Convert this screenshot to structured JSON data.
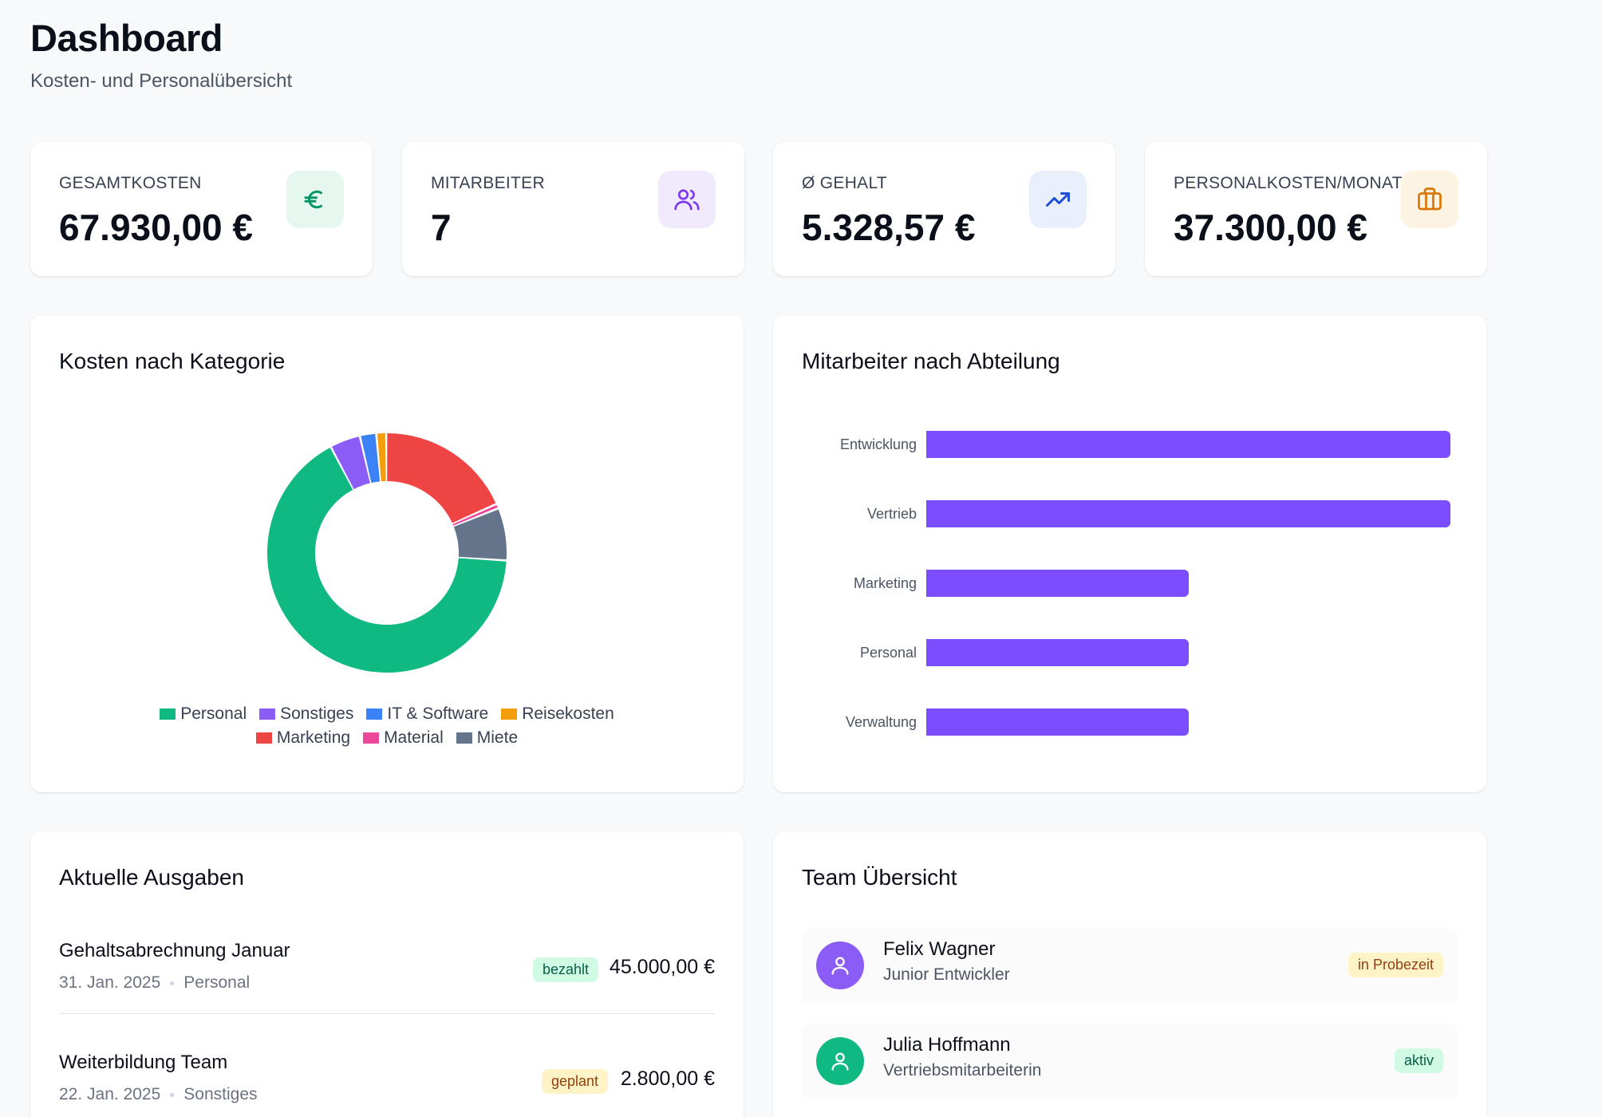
{
  "header": {
    "title": "Dashboard",
    "subtitle": "Kosten- und Personalübersicht"
  },
  "stats": [
    {
      "label": "GESAMTKOSTEN",
      "value": "67.930,00 €",
      "icon": "euro-icon",
      "icon_color": "#059669",
      "icon_bg": "#e6f7ef"
    },
    {
      "label": "MITARBEITER",
      "value": "7",
      "icon": "users-icon",
      "icon_color": "#7c3aed",
      "icon_bg": "#f1eafd"
    },
    {
      "label": "Ø GEHALT",
      "value": "5.328,57 €",
      "icon": "trending-up-icon",
      "icon_color": "#1d4ed8",
      "icon_bg": "#eaf0fb"
    },
    {
      "label": "PERSONALKOSTEN/MONAT",
      "value": "37.300,00 €",
      "icon": "briefcase-icon",
      "icon_color": "#d97706",
      "icon_bg": "#fdf3e3"
    }
  ],
  "costs_panel": {
    "title": "Kosten nach Kategorie"
  },
  "departments_panel": {
    "title": "Mitarbeiter nach Abteilung"
  },
  "chart_data": [
    {
      "type": "pie",
      "title": "Kosten nach Kategorie",
      "categories": [
        "Personal",
        "Sonstiges",
        "IT & Software",
        "Reisekosten",
        "Marketing",
        "Material",
        "Miete"
      ],
      "values": [
        45000,
        2800,
        1500,
        900,
        12500,
        430,
        4800
      ],
      "colors": [
        "#10b981",
        "#8b5cf6",
        "#3b82f6",
        "#f59e0b",
        "#ef4444",
        "#ec4899",
        "#64748b"
      ],
      "legend": "bottom"
    },
    {
      "type": "bar",
      "orientation": "horizontal",
      "title": "Mitarbeiter nach Abteilung",
      "categories": [
        "Entwicklung",
        "Vertrieb",
        "Marketing",
        "Personal",
        "Verwaltung"
      ],
      "values": [
        2,
        2,
        1,
        1,
        1
      ],
      "color": "#7c4dff",
      "xlim": [
        0,
        2
      ]
    }
  ],
  "expenses": {
    "title": "Aktuelle Ausgaben",
    "items": [
      {
        "title": "Gehaltsabrechnung Januar",
        "date": "31. Jan. 2025",
        "category": "Personal",
        "status": "bezahlt",
        "amount": "45.000,00 €",
        "status_color": "#065f46",
        "status_bg": "#d1fae5"
      },
      {
        "title": "Weiterbildung Team",
        "date": "22. Jan. 2025",
        "category": "Sonstiges",
        "status": "geplant",
        "amount": "2.800,00 €",
        "status_color": "#92400e",
        "status_bg": "#fef3c7"
      }
    ]
  },
  "team": {
    "title": "Team Übersicht",
    "members": [
      {
        "name": "Felix Wagner",
        "role": "Junior Entwickler",
        "status": "in Probezeit",
        "avatar_color": "#8b5cf6",
        "status_color": "#92400e",
        "status_bg": "#fef3c7"
      },
      {
        "name": "Julia Hoffmann",
        "role": "Vertriebsmitarbeiterin",
        "status": "aktiv",
        "avatar_color": "#10b981",
        "status_color": "#065f46",
        "status_bg": "#d1fae5"
      }
    ]
  }
}
